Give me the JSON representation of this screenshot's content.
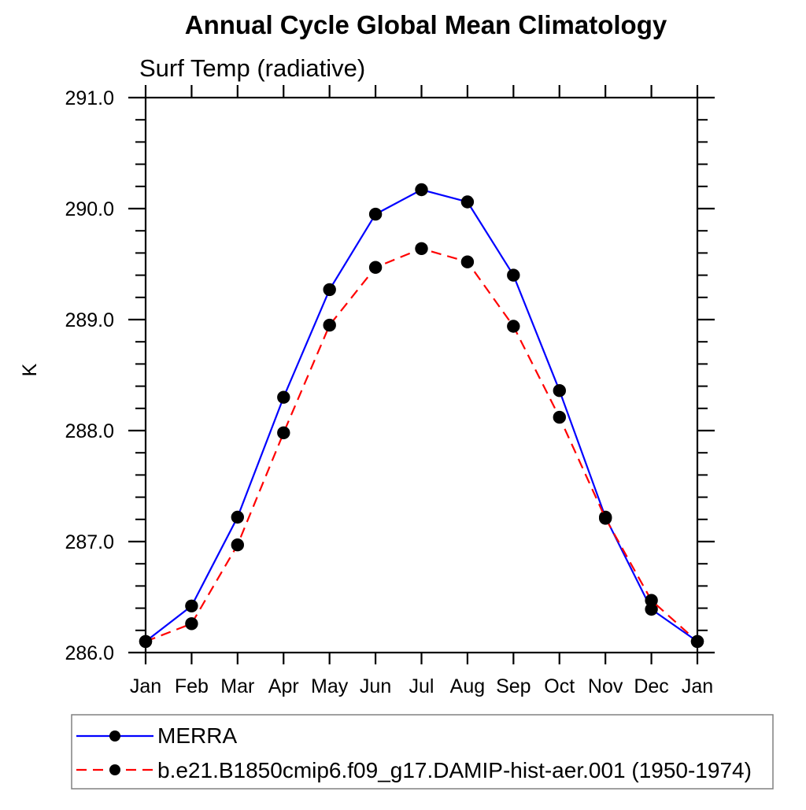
{
  "chart_data": {
    "type": "line",
    "title": "Annual Cycle Global Mean Climatology",
    "subtitle": "Surf Temp (radiative)",
    "xlabel": "",
    "ylabel": "K",
    "x_categories": [
      "Jan",
      "Feb",
      "Mar",
      "Apr",
      "May",
      "Jun",
      "Jul",
      "Aug",
      "Sep",
      "Oct",
      "Nov",
      "Dec",
      "Jan"
    ],
    "ylim": [
      286.0,
      291.0
    ],
    "y_major_ticks": [
      "286.0",
      "287.0",
      "288.0",
      "289.0",
      "290.0",
      "291.0"
    ],
    "y_minor_step": 0.2,
    "grid": false,
    "legend_position": "bottom-left",
    "axis_color": "#000000",
    "marker_color": "#000000",
    "legend_border_color": "#808080",
    "series": [
      {
        "name": "MERRA",
        "color": "#0000ff",
        "line_style": "solid",
        "marker": "filled-circle",
        "values": [
          286.1,
          286.42,
          287.22,
          288.3,
          289.27,
          289.95,
          290.17,
          290.06,
          289.4,
          288.36,
          287.22,
          286.39,
          286.1
        ]
      },
      {
        "name": "b.e21.B1850cmip6.f09_g17.DAMIP-hist-aer.001 (1950-1974)",
        "color": "#ff0000",
        "line_style": "dashed",
        "marker": "filled-circle",
        "values": [
          286.1,
          286.26,
          286.97,
          287.98,
          288.95,
          289.47,
          289.64,
          289.52,
          288.94,
          288.12,
          287.21,
          286.47,
          286.1
        ]
      }
    ]
  }
}
